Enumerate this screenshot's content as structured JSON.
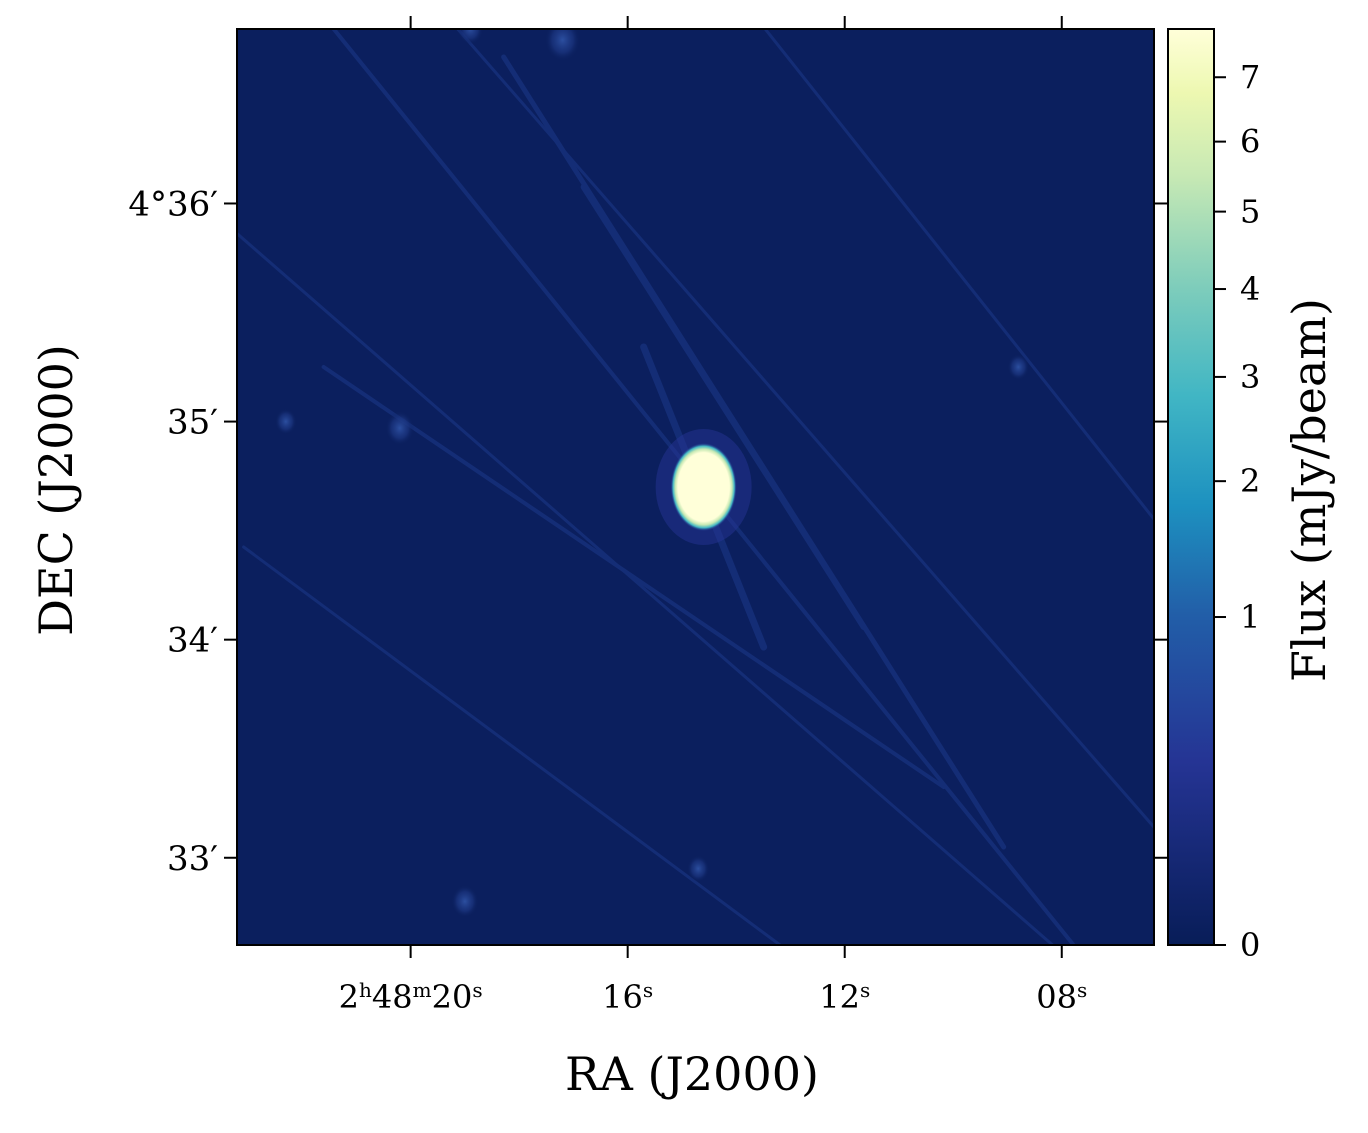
{
  "chart_data": {
    "type": "heatmap",
    "title": "",
    "xlabel": "RA (J2000)",
    "ylabel": "DEC (J2000)",
    "colorbar_label": "Flux (mJy/beam)",
    "colormap": "YlGnBu",
    "colorbar_scale": "sqrt",
    "colorbar_range": [
      0,
      7.8
    ],
    "colorbar_ticks": [
      0,
      1,
      2,
      3,
      4,
      5,
      6,
      7
    ],
    "x_ticks": [
      {
        "base": "2",
        "sup1": "h",
        "mid": "48",
        "sup2": "m",
        "end": "20",
        "sup3": "s",
        "value_s": 20
      },
      {
        "base": "",
        "sup1": "",
        "mid": "",
        "sup2": "",
        "end": "16",
        "sup3": "s",
        "value_s": 16
      },
      {
        "base": "",
        "sup1": "",
        "mid": "",
        "sup2": "",
        "end": "12",
        "sup3": "s",
        "value_s": 12
      },
      {
        "base": "",
        "sup1": "",
        "mid": "",
        "sup2": "",
        "end": "08",
        "sup3": "s",
        "value_s": 8
      }
    ],
    "x_range_s": [
      23.2,
      6.3
    ],
    "y_ticks": [
      {
        "label": "4°36′",
        "value_arcmin": 36
      },
      {
        "label": "35′",
        "value_arcmin": 35
      },
      {
        "label": "34′",
        "value_arcmin": 34
      },
      {
        "label": "33′",
        "value_arcmin": 33
      }
    ],
    "y_range_arcmin": [
      32.6,
      36.8
    ],
    "sources": [
      {
        "ra_s": 14.6,
        "dec_arcmin": 34.7,
        "flux": 7.8,
        "note": "bright central source"
      },
      {
        "ra_s": 20.2,
        "dec_arcmin": 34.97,
        "flux": 0.45
      },
      {
        "ra_s": 22.3,
        "dec_arcmin": 35.0,
        "flux": 0.2
      },
      {
        "ra_s": 17.2,
        "dec_arcmin": 36.75,
        "flux": 0.7
      },
      {
        "ra_s": 18.9,
        "dec_arcmin": 36.8,
        "flux": 0.35
      },
      {
        "ra_s": 19.0,
        "dec_arcmin": 32.8,
        "flux": 0.4
      },
      {
        "ra_s": 8.8,
        "dec_arcmin": 35.25,
        "flux": 0.2
      },
      {
        "ra_s": 14.7,
        "dec_arcmin": 32.95,
        "flux": 0.22
      }
    ]
  }
}
